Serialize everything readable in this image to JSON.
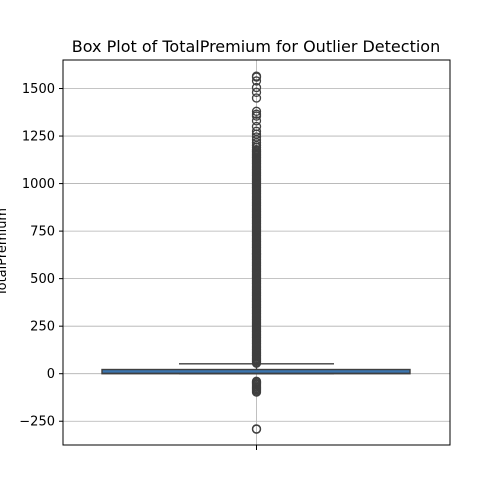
{
  "chart_data": {
    "type": "box",
    "title": "Box Plot of TotalPremium for Outlier Detection",
    "xlabel": "",
    "ylabel": "TotalPremium",
    "ylim": [
      -375,
      1650
    ],
    "yticks": [
      -250,
      0,
      250,
      500,
      750,
      1000,
      1250,
      1500
    ],
    "grid": true,
    "box_color": "#3b75af",
    "box": {
      "min": 0,
      "q1": 0,
      "median": 2,
      "q3": 22,
      "max": 52
    },
    "outliers": {
      "upper_dense_range": [
        55,
        1180
      ],
      "upper_points": [
        1190,
        1200,
        1215,
        1230,
        1245,
        1260,
        1275,
        1300,
        1330,
        1355,
        1365,
        1380,
        1450,
        1480,
        1505,
        1540,
        1560,
        1565
      ],
      "lower_dense_range": [
        -40,
        -100
      ],
      "lower_points": [
        -290,
        -292
      ]
    }
  }
}
